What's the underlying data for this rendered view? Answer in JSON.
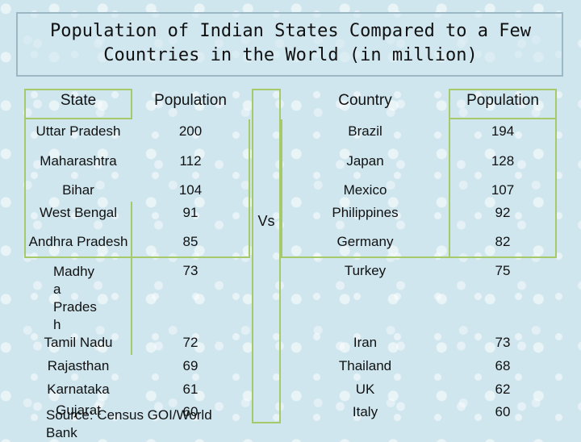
{
  "title": {
    "line1": "Population of Indian States Compared to a Few",
    "line2": "Countries in the World (in million)"
  },
  "headers": {
    "state": "State",
    "population_left": "Population",
    "country": "Country",
    "population_right": "Population"
  },
  "vs_label": "Vs",
  "rows": [
    {
      "state": "Uttar Pradesh",
      "state_pop": "200",
      "country": "Brazil",
      "country_pop": "194"
    },
    {
      "state": "Maharashtra",
      "state_pop": "112",
      "country": "Japan",
      "country_pop": "128"
    },
    {
      "state": "Bihar",
      "state_pop": "104",
      "country": "Mexico",
      "country_pop": "107"
    },
    {
      "state": "West Bengal",
      "state_pop": "91",
      "country": "Philippines",
      "country_pop": "92"
    },
    {
      "state": "Andhra Pradesh",
      "state_pop": "85",
      "country": "Germany",
      "country_pop": "82"
    },
    {
      "state": "Madhy",
      "state_pop": "73",
      "country": "Turkey",
      "country_pop": "75"
    },
    {
      "state": "Tamil Nadu",
      "state_pop": "72",
      "country": "Iran",
      "country_pop": "73"
    },
    {
      "state": "Rajasthan",
      "state_pop": "69",
      "country": "Thailand",
      "country_pop": "68"
    },
    {
      "state": "Karnataka",
      "state_pop": "61",
      "country": "UK",
      "country_pop": "62"
    },
    {
      "state": "Gujarat",
      "state_pop": "60",
      "country": "Italy",
      "country_pop": "60"
    }
  ],
  "madhya_wrap": [
    "Madhy",
    "a",
    "Prades",
    "h"
  ],
  "source": "Source: Census GOI/World",
  "source_line2": "Bank"
}
